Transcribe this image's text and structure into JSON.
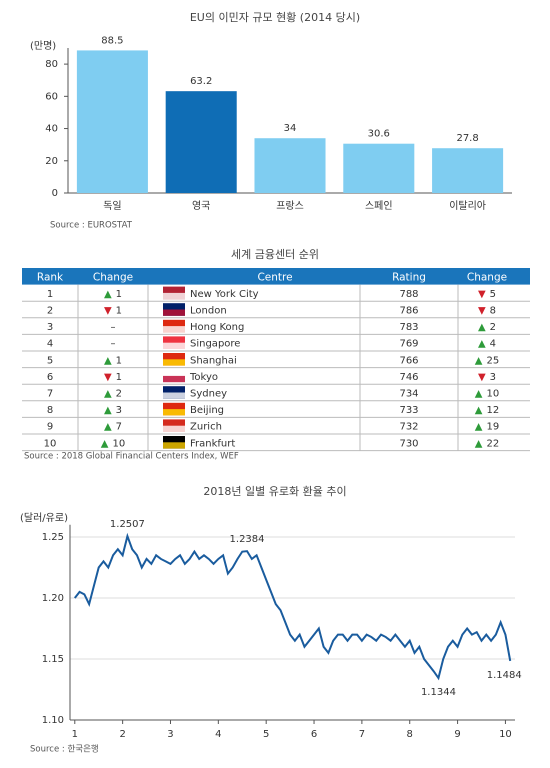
{
  "chart_data": [
    {
      "type": "bar",
      "title": "EU의 이민자 규모 현황 (2014 당시)",
      "y_label": "(만명)",
      "source": "Source : EUROSTAT",
      "categories": [
        "독일",
        "영국",
        "프랑스",
        "스페인",
        "이탈리아"
      ],
      "values": [
        88.5,
        63.2,
        34,
        30.6,
        27.8
      ],
      "colors": [
        "#7fcdf1",
        "#0f6db5",
        "#7fcdf1",
        "#7fcdf1",
        "#7fcdf1"
      ],
      "ylim": [
        0,
        90
      ],
      "yticks": [
        0,
        20,
        40,
        60,
        80
      ]
    },
    {
      "type": "line",
      "title": "2018년 일별 유로화 환율 추이",
      "y_label": "(달러/유로)",
      "source": "Source : 한국은행",
      "color": "#1a5c9e",
      "grid": true,
      "x": [
        1.0,
        1.1,
        1.2,
        1.3,
        1.4,
        1.5,
        1.6,
        1.7,
        1.8,
        1.9,
        2.0,
        2.1,
        2.2,
        2.3,
        2.4,
        2.5,
        2.6,
        2.7,
        2.8,
        2.9,
        3.0,
        3.1,
        3.2,
        3.3,
        3.4,
        3.5,
        3.6,
        3.7,
        3.8,
        3.9,
        4.0,
        4.1,
        4.2,
        4.3,
        4.4,
        4.5,
        4.6,
        4.7,
        4.8,
        4.9,
        5.0,
        5.1,
        5.2,
        5.3,
        5.4,
        5.5,
        5.6,
        5.7,
        5.8,
        5.9,
        6.0,
        6.1,
        6.2,
        6.3,
        6.4,
        6.5,
        6.6,
        6.7,
        6.8,
        6.9,
        7.0,
        7.1,
        7.2,
        7.3,
        7.4,
        7.5,
        7.6,
        7.7,
        7.8,
        7.9,
        8.0,
        8.1,
        8.2,
        8.3,
        8.4,
        8.5,
        8.6,
        8.7,
        8.8,
        8.9,
        9.0,
        9.1,
        9.2,
        9.3,
        9.4,
        9.5,
        9.6,
        9.7,
        9.8,
        9.9,
        10.0,
        10.1
      ],
      "values": [
        1.2,
        1.205,
        1.203,
        1.195,
        1.21,
        1.225,
        1.23,
        1.225,
        1.235,
        1.24,
        1.235,
        1.2507,
        1.24,
        1.235,
        1.225,
        1.232,
        1.228,
        1.235,
        1.232,
        1.23,
        1.228,
        1.232,
        1.235,
        1.228,
        1.232,
        1.238,
        1.232,
        1.235,
        1.232,
        1.228,
        1.232,
        1.235,
        1.22,
        1.225,
        1.232,
        1.238,
        1.2384,
        1.232,
        1.235,
        1.225,
        1.215,
        1.205,
        1.195,
        1.19,
        1.18,
        1.17,
        1.165,
        1.17,
        1.16,
        1.165,
        1.17,
        1.175,
        1.16,
        1.155,
        1.165,
        1.17,
        1.17,
        1.165,
        1.17,
        1.17,
        1.165,
        1.17,
        1.168,
        1.165,
        1.17,
        1.168,
        1.165,
        1.17,
        1.165,
        1.16,
        1.165,
        1.155,
        1.16,
        1.15,
        1.145,
        1.14,
        1.1344,
        1.15,
        1.16,
        1.165,
        1.16,
        1.17,
        1.175,
        1.17,
        1.172,
        1.165,
        1.17,
        1.165,
        1.17,
        1.18,
        1.17,
        1.1484
      ],
      "xlim": [
        0.9,
        10.2
      ],
      "xticks": [
        1,
        2,
        3,
        4,
        5,
        6,
        7,
        8,
        9,
        10
      ],
      "ylim": [
        1.1,
        1.26
      ],
      "yticks": [
        {
          "value": 1.1,
          "label": "1.10"
        },
        1.15,
        {
          "value": 1.2,
          "label": "1.20"
        },
        1.25
      ],
      "annotations": [
        {
          "x": 2.1,
          "value": 1.2507,
          "label": "1.2507",
          "pos": "above"
        },
        {
          "x": 4.6,
          "value": 1.2384,
          "label": "1.2384",
          "pos": "above"
        },
        {
          "x": 8.6,
          "value": 1.1344,
          "label": "1.1344",
          "pos": "below"
        },
        {
          "x": 10.1,
          "value": 1.1484,
          "label": "1.1484",
          "pos": "below"
        }
      ]
    }
  ],
  "table": {
    "title": "세계 금융센터 순위",
    "source": "Source : 2018 Global Financial Centers Index, WEF",
    "header": [
      "Rank",
      "Change",
      "Centre",
      "Rating",
      "Change"
    ],
    "rows": [
      [
        "1",
        {
          "arrow": "▲",
          "num": "1"
        },
        "New York City",
        "788",
        {
          "arrow": "▼",
          "num": "5"
        }
      ],
      [
        "2",
        {
          "arrow": "▼",
          "num": "1"
        },
        "London",
        "786",
        {
          "arrow": "▼",
          "num": "8"
        }
      ],
      [
        "3",
        {
          "arrow": "–"
        },
        "Hong Kong",
        "783",
        {
          "arrow": "▲",
          "num": "2"
        }
      ],
      [
        "4",
        {
          "arrow": "–"
        },
        "Singapore",
        "769",
        {
          "arrow": "▲",
          "num": "4"
        }
      ],
      [
        "5",
        {
          "arrow": "▲",
          "num": "1"
        },
        "Shanghai",
        "766",
        {
          "arrow": "▲",
          "num": "25"
        }
      ],
      [
        "6",
        {
          "arrow": "▼",
          "num": "1"
        },
        "Tokyo",
        "746",
        {
          "arrow": "▼",
          "num": "3"
        }
      ],
      [
        "7",
        {
          "arrow": "▲",
          "num": "2"
        },
        "Sydney",
        "734",
        {
          "arrow": "▲",
          "num": "10"
        }
      ],
      [
        "8",
        {
          "arrow": "▲",
          "num": "3"
        },
        "Beijing",
        "733",
        {
          "arrow": "▲",
          "num": "12"
        }
      ],
      [
        "9",
        {
          "arrow": "▲",
          "num": "7"
        },
        "Zurich",
        "732",
        {
          "arrow": "▲",
          "num": "19"
        }
      ],
      [
        "10",
        {
          "arrow": "▲",
          "num": "10"
        },
        "Frankfurt",
        "730",
        {
          "arrow": "▲",
          "num": "22"
        }
      ]
    ]
  }
}
